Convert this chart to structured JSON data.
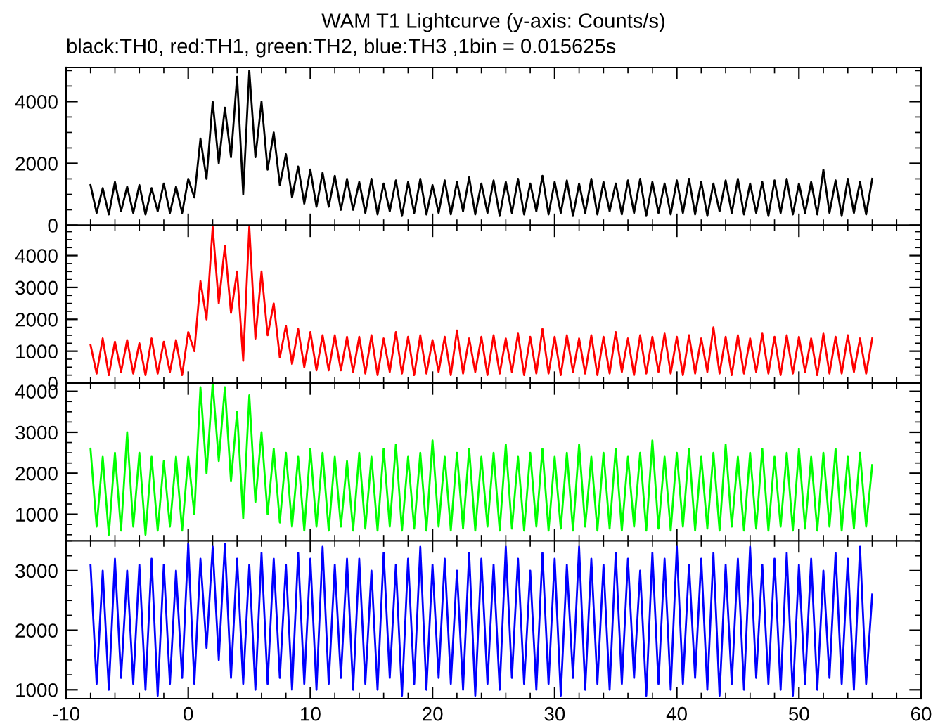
{
  "chart_data": [
    {
      "type": "line",
      "title": "WAM T1 Lightcurve (y-axis: Counts/s)",
      "subtitle": "black:TH0, red:TH1, green:TH2, blue:TH3 ,1bin = 0.015625s",
      "x": [
        -8,
        -7.5,
        -7,
        -6.5,
        -6,
        -5.5,
        -5,
        -4.5,
        -4,
        -3.5,
        -3,
        -2.5,
        -2,
        -1.5,
        -1,
        -0.5,
        0,
        0.5,
        1,
        1.5,
        2,
        2.5,
        3,
        3.5,
        4,
        4.5,
        5,
        5.5,
        6,
        6.5,
        7,
        7.5,
        8,
        8.5,
        9,
        9.5,
        10,
        10.5,
        11,
        11.5,
        12,
        12.5,
        13,
        13.5,
        14,
        14.5,
        15,
        15.5,
        16,
        16.5,
        17,
        17.5,
        18,
        18.5,
        19,
        19.5,
        20,
        20.5,
        21,
        21.5,
        22,
        22.5,
        23,
        23.5,
        24,
        24.5,
        25,
        25.5,
        26,
        26.5,
        27,
        27.5,
        28,
        28.5,
        29,
        29.5,
        30,
        30.5,
        31,
        31.5,
        32,
        32.5,
        33,
        33.5,
        34,
        34.5,
        35,
        35.5,
        36,
        36.5,
        37,
        37.5,
        38,
        38.5,
        39,
        39.5,
        40,
        40.5,
        41,
        41.5,
        42,
        42.5,
        43,
        43.5,
        44,
        44.5,
        45,
        45.5,
        46,
        46.5,
        47,
        47.5,
        48,
        48.5,
        49,
        49.5,
        50,
        50.5,
        51,
        51.5,
        52,
        52.5,
        53,
        53.5,
        54,
        54.5,
        55,
        55.5,
        56
      ],
      "series": [
        {
          "color": "#000000",
          "values": [
            1300,
            400,
            1200,
            350,
            1400,
            450,
            1250,
            400,
            1300,
            350,
            1200,
            450,
            1350,
            400,
            1250,
            400,
            1500,
            900,
            2800,
            1500,
            4000,
            2000,
            3800,
            2200,
            4800,
            1000,
            5000,
            2200,
            4000,
            1800,
            3000,
            1300,
            2300,
            900,
            1900,
            700,
            1800,
            600,
            1700,
            600,
            1600,
            500,
            1500,
            500,
            1400,
            400,
            1500,
            350,
            1350,
            450,
            1450,
            300,
            1400,
            400,
            1500,
            350,
            1300,
            400,
            1450,
            350,
            1400,
            450,
            1550,
            350,
            1350,
            400,
            1450,
            300,
            1400,
            400,
            1500,
            350,
            1350,
            450,
            1600,
            350,
            1400,
            400,
            1450,
            300,
            1350,
            400,
            1500,
            350,
            1400,
            450,
            1350,
            350,
            1450,
            400,
            1500,
            300,
            1400,
            400,
            1350,
            350,
            1450,
            400,
            1500,
            350,
            1400,
            300,
            1350,
            450,
            1450,
            400,
            1500,
            350,
            1350,
            400,
            1400,
            300,
            1450,
            400,
            1500,
            350,
            1350,
            400,
            1400,
            350,
            1800,
            400,
            1450,
            300,
            1500,
            400,
            1400,
            350,
            1500
          ]
        }
      ],
      "xlim": [
        -10,
        60
      ],
      "xticks": [
        -10,
        0,
        10,
        20,
        30,
        40,
        50,
        60
      ],
      "ylim": [
        0,
        5100
      ],
      "yticks": [
        0,
        2000,
        4000
      ],
      "tick_labels": "y",
      "grid": false
    },
    {
      "type": "line",
      "x": [
        -8,
        -7.5,
        -7,
        -6.5,
        -6,
        -5.5,
        -5,
        -4.5,
        -4,
        -3.5,
        -3,
        -2.5,
        -2,
        -1.5,
        -1,
        -0.5,
        0,
        0.5,
        1,
        1.5,
        2,
        2.5,
        3,
        3.5,
        4,
        4.5,
        5,
        5.5,
        6,
        6.5,
        7,
        7.5,
        8,
        8.5,
        9,
        9.5,
        10,
        10.5,
        11,
        11.5,
        12,
        12.5,
        13,
        13.5,
        14,
        14.5,
        15,
        15.5,
        16,
        16.5,
        17,
        17.5,
        18,
        18.5,
        19,
        19.5,
        20,
        20.5,
        21,
        21.5,
        22,
        22.5,
        23,
        23.5,
        24,
        24.5,
        25,
        25.5,
        26,
        26.5,
        27,
        27.5,
        28,
        28.5,
        29,
        29.5,
        30,
        30.5,
        31,
        31.5,
        32,
        32.5,
        33,
        33.5,
        34,
        34.5,
        35,
        35.5,
        36,
        36.5,
        37,
        37.5,
        38,
        38.5,
        39,
        39.5,
        40,
        40.5,
        41,
        41.5,
        42,
        42.5,
        43,
        43.5,
        44,
        44.5,
        45,
        45.5,
        46,
        46.5,
        47,
        47.5,
        48,
        48.5,
        49,
        49.5,
        50,
        50.5,
        51,
        51.5,
        52,
        52.5,
        53,
        53.5,
        54,
        54.5,
        55,
        55.5,
        56
      ],
      "series": [
        {
          "color": "#ff0000",
          "values": [
            1200,
            300,
            1400,
            250,
            1300,
            350,
            1350,
            300,
            1250,
            250,
            1400,
            300,
            1300,
            350,
            1350,
            250,
            1600,
            1000,
            3200,
            2000,
            4900,
            2500,
            4300,
            2200,
            3500,
            700,
            4900,
            1400,
            3500,
            1500,
            2500,
            800,
            1800,
            600,
            1700,
            500,
            1600,
            400,
            1500,
            400,
            1500,
            400,
            1450,
            350,
            1450,
            300,
            1500,
            250,
            1400,
            350,
            1600,
            300,
            1450,
            250,
            1500,
            300,
            1350,
            350,
            1450,
            250,
            1650,
            300,
            1400,
            350,
            1450,
            250,
            1500,
            300,
            1400,
            350,
            1550,
            250,
            1450,
            300,
            1700,
            300,
            1450,
            250,
            1500,
            350,
            1400,
            300,
            1500,
            250,
            1450,
            300,
            1600,
            350,
            1400,
            250,
            1500,
            300,
            1450,
            350,
            1550,
            300,
            1450,
            250,
            1500,
            300,
            1400,
            350,
            1750,
            300,
            1450,
            250,
            1500,
            300,
            1400,
            350,
            1550,
            300,
            1450,
            250,
            1500,
            300,
            1450,
            350,
            1400,
            250,
            1550,
            300,
            1450,
            300,
            1500,
            350,
            1400,
            300,
            1400
          ]
        }
      ],
      "xlim": [
        -10,
        60
      ],
      "xticks": [
        -10,
        0,
        10,
        20,
        30,
        40,
        50,
        60
      ],
      "ylim": [
        0,
        4950
      ],
      "yticks": [
        0,
        1000,
        2000,
        3000,
        4000
      ],
      "tick_labels": "y",
      "grid": false
    },
    {
      "type": "line",
      "x": [
        -8,
        -7.5,
        -7,
        -6.5,
        -6,
        -5.5,
        -5,
        -4.5,
        -4,
        -3.5,
        -3,
        -2.5,
        -2,
        -1.5,
        -1,
        -0.5,
        0,
        0.5,
        1,
        1.5,
        2,
        2.5,
        3,
        3.5,
        4,
        4.5,
        5,
        5.5,
        6,
        6.5,
        7,
        7.5,
        8,
        8.5,
        9,
        9.5,
        10,
        10.5,
        11,
        11.5,
        12,
        12.5,
        13,
        13.5,
        14,
        14.5,
        15,
        15.5,
        16,
        16.5,
        17,
        17.5,
        18,
        18.5,
        19,
        19.5,
        20,
        20.5,
        21,
        21.5,
        22,
        22.5,
        23,
        23.5,
        24,
        24.5,
        25,
        25.5,
        26,
        26.5,
        27,
        27.5,
        28,
        28.5,
        29,
        29.5,
        30,
        30.5,
        31,
        31.5,
        32,
        32.5,
        33,
        33.5,
        34,
        34.5,
        35,
        35.5,
        36,
        36.5,
        37,
        37.5,
        38,
        38.5,
        39,
        39.5,
        40,
        40.5,
        41,
        41.5,
        42,
        42.5,
        43,
        43.5,
        44,
        44.5,
        45,
        45.5,
        46,
        46.5,
        47,
        47.5,
        48,
        48.5,
        49,
        49.5,
        50,
        50.5,
        51,
        51.5,
        52,
        52.5,
        53,
        53.5,
        54,
        54.5,
        55,
        55.5,
        56
      ],
      "series": [
        {
          "color": "#00ff00",
          "values": [
            2600,
            700,
            2400,
            500,
            2500,
            600,
            3000,
            700,
            2500,
            500,
            2400,
            600,
            2300,
            700,
            2400,
            600,
            2400,
            1000,
            4100,
            2000,
            4200,
            2300,
            4100,
            1800,
            3500,
            900,
            3900,
            1300,
            3000,
            1000,
            2600,
            800,
            2500,
            700,
            2400,
            600,
            2600,
            700,
            2500,
            600,
            2400,
            700,
            2300,
            600,
            2500,
            650,
            2400,
            600,
            2600,
            700,
            2700,
            600,
            2400,
            650,
            2500,
            600,
            2800,
            700,
            2400,
            600,
            2500,
            650,
            2600,
            600,
            2400,
            700,
            2500,
            600,
            2700,
            650,
            2400,
            600,
            2500,
            700,
            2600,
            600,
            2400,
            650,
            2500,
            600,
            2700,
            700,
            2400,
            600,
            2500,
            650,
            2600,
            600,
            2400,
            700,
            2500,
            600,
            2800,
            650,
            2400,
            600,
            2500,
            700,
            2600,
            600,
            2400,
            650,
            2500,
            600,
            2700,
            700,
            2400,
            600,
            2500,
            650,
            2600,
            600,
            2400,
            700,
            2500,
            600,
            2600,
            650,
            2400,
            600,
            2500,
            700,
            2600,
            600,
            2400,
            650,
            2500,
            700,
            2200
          ]
        }
      ],
      "xlim": [
        -10,
        60
      ],
      "xticks": [
        -10,
        0,
        10,
        20,
        30,
        40,
        50,
        60
      ],
      "ylim": [
        350,
        4200
      ],
      "yticks": [
        1000,
        2000,
        3000,
        4000
      ],
      "tick_labels": "y",
      "grid": false
    },
    {
      "type": "line",
      "x": [
        -8,
        -7.5,
        -7,
        -6.5,
        -6,
        -5.5,
        -5,
        -4.5,
        -4,
        -3.5,
        -3,
        -2.5,
        -2,
        -1.5,
        -1,
        -0.5,
        0,
        0.5,
        1,
        1.5,
        2,
        2.5,
        3,
        3.5,
        4,
        4.5,
        5,
        5.5,
        6,
        6.5,
        7,
        7.5,
        8,
        8.5,
        9,
        9.5,
        10,
        10.5,
        11,
        11.5,
        12,
        12.5,
        13,
        13.5,
        14,
        14.5,
        15,
        15.5,
        16,
        16.5,
        17,
        17.5,
        18,
        18.5,
        19,
        19.5,
        20,
        20.5,
        21,
        21.5,
        22,
        22.5,
        23,
        23.5,
        24,
        24.5,
        25,
        25.5,
        26,
        26.5,
        27,
        27.5,
        28,
        28.5,
        29,
        29.5,
        30,
        30.5,
        31,
        31.5,
        32,
        32.5,
        33,
        33.5,
        34,
        34.5,
        35,
        35.5,
        36,
        36.5,
        37,
        37.5,
        38,
        38.5,
        39,
        39.5,
        40,
        40.5,
        41,
        41.5,
        42,
        42.5,
        43,
        43.5,
        44,
        44.5,
        45,
        45.5,
        46,
        46.5,
        47,
        47.5,
        48,
        48.5,
        49,
        49.5,
        50,
        50.5,
        51,
        51.5,
        52,
        52.5,
        53,
        53.5,
        54,
        54.5,
        55,
        55.5,
        56
      ],
      "series": [
        {
          "color": "#0000ff",
          "values": [
            3100,
            1100,
            3000,
            1000,
            3200,
            1200,
            3000,
            1100,
            3100,
            1000,
            3200,
            900,
            3100,
            1100,
            3000,
            1200,
            3450,
            1100,
            3200,
            1700,
            3400,
            1500,
            3450,
            1200,
            3200,
            1100,
            3100,
            1000,
            3300,
            1100,
            3200,
            1200,
            3100,
            1000,
            3300,
            1100,
            3200,
            1000,
            3400,
            1100,
            3100,
            1200,
            3200,
            1000,
            3200,
            1100,
            3000,
            1000,
            3300,
            1200,
            3100,
            900,
            3200,
            1100,
            3400,
            1000,
            3100,
            1200,
            3200,
            1100,
            3000,
            1000,
            3300,
            900,
            3200,
            1100,
            3100,
            1000,
            3400,
            1200,
            3200,
            1100,
            3000,
            1000,
            3300,
            1100,
            3200,
            900,
            3100,
            1200,
            3400,
            1000,
            3200,
            1100,
            3100,
            1000,
            3300,
            1100,
            3200,
            1200,
            3000,
            900,
            3300,
            1100,
            3200,
            1000,
            3400,
            1100,
            3100,
            1200,
            3200,
            1000,
            3300,
            900,
            3100,
            1100,
            3200,
            1000,
            3400,
            1200,
            3100,
            1100,
            3200,
            1000,
            3300,
            900,
            3100,
            1100,
            3200,
            1000,
            3000,
            1200,
            3300,
            1100,
            3200,
            1000,
            3400,
            1100,
            2600
          ]
        }
      ],
      "xlim": [
        -10,
        60
      ],
      "xticks": [
        -10,
        0,
        10,
        20,
        30,
        40,
        50,
        60
      ],
      "ylim": [
        850,
        3500
      ],
      "yticks": [
        1000,
        2000,
        3000
      ],
      "grid": false
    }
  ]
}
